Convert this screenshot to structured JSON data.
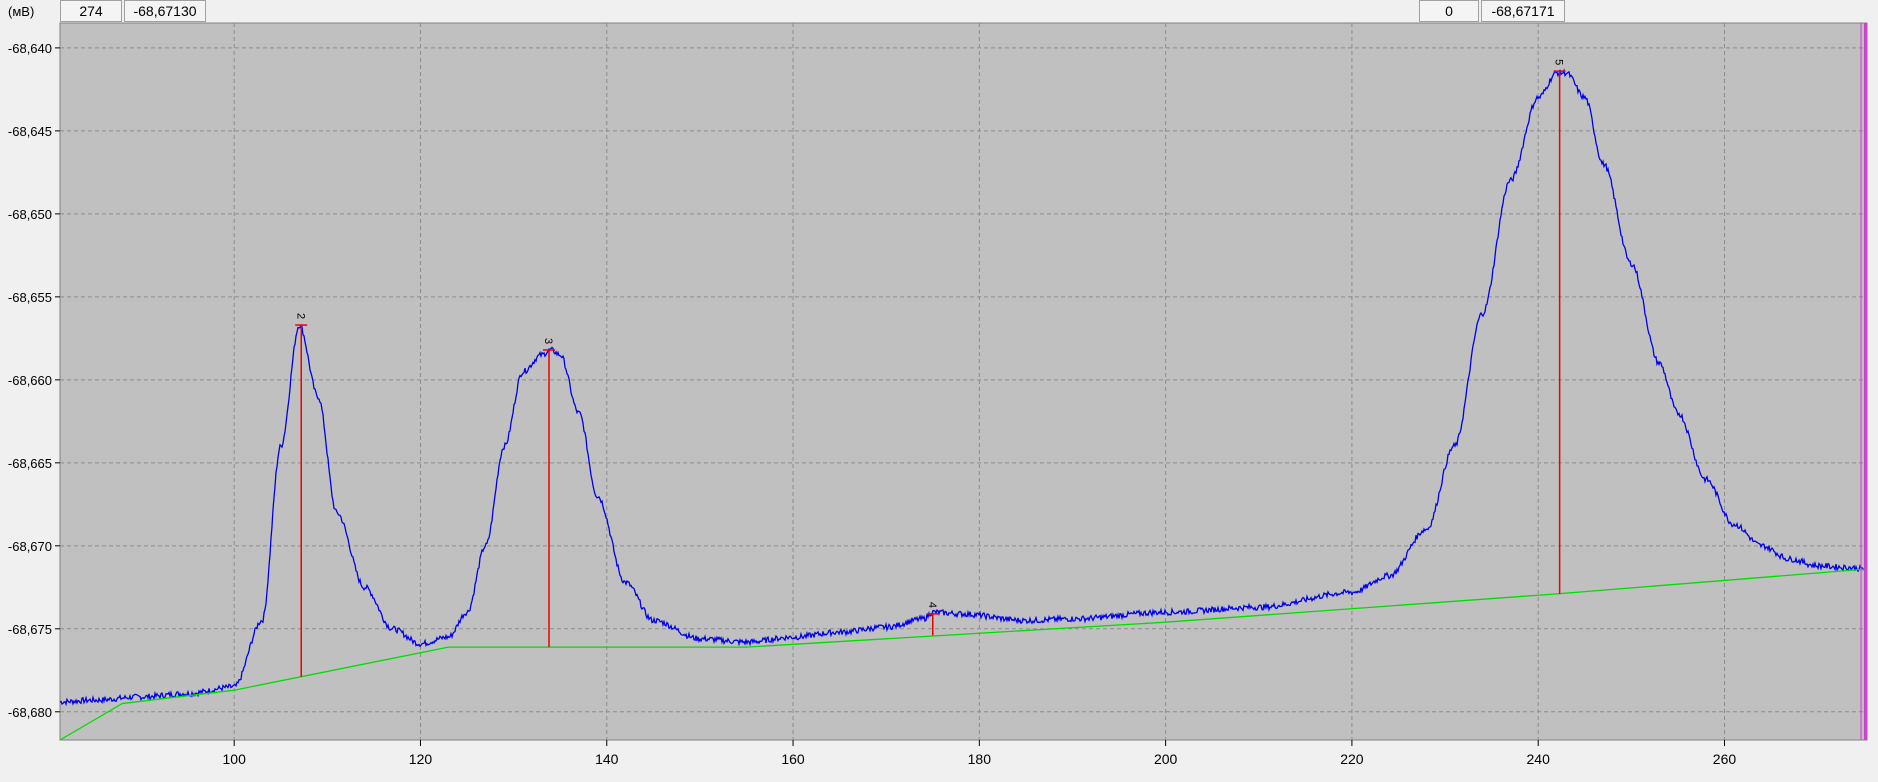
{
  "toolbar": {
    "left_index": "274",
    "left_value": "-68,67130",
    "right_index": "0",
    "right_value": "-68,67171"
  },
  "colors": {
    "plot_bg": "#c0c0c0",
    "grid": "#8c8c8c",
    "signal": "#0000ee",
    "baseline": "#00dd00",
    "peak_marker": "#ee0000",
    "cursor": "#cc44cc"
  },
  "chart_data": {
    "type": "line",
    "title": "",
    "unit_label": "(мВ)",
    "xlabel": "",
    "ylabel": "",
    "xlim": [
      81.3,
      275.3
    ],
    "ylim": [
      -68.6817,
      -68.6385
    ],
    "x_ticks": [
      100,
      120,
      140,
      160,
      180,
      200,
      220,
      240,
      260
    ],
    "y_ticks": [
      -68.64,
      -68.645,
      -68.65,
      -68.655,
      -68.66,
      -68.665,
      -68.67,
      -68.675,
      -68.68
    ],
    "x_tick_labels": [
      "100",
      "120",
      "140",
      "160",
      "180",
      "200",
      "220",
      "240",
      "260"
    ],
    "y_tick_labels": [
      "-68,640",
      "-68,645",
      "-68,650",
      "-68,655",
      "-68,660",
      "-68,665",
      "-68,670",
      "-68,675",
      "-68,680"
    ],
    "grid": true,
    "signal": {
      "x": [
        81.3,
        85,
        90,
        95,
        100,
        103,
        105,
        107,
        109,
        111,
        114,
        117,
        120,
        123,
        125,
        127,
        129,
        131,
        133,
        134,
        135,
        137,
        139,
        142,
        145,
        150,
        155,
        160,
        165,
        170,
        174,
        175,
        178,
        185,
        190,
        200,
        210,
        220,
        224,
        228,
        231,
        234,
        237,
        240,
        242,
        243,
        245,
        247,
        250,
        253,
        255,
        258,
        261,
        264,
        267,
        270,
        273,
        275.3
      ],
      "y": [
        -68.6794,
        -68.6793,
        -68.6791,
        -68.6789,
        -68.6785,
        -68.6745,
        -68.664,
        -68.6567,
        -68.661,
        -68.668,
        -68.6725,
        -68.675,
        -68.6759,
        -68.6755,
        -68.674,
        -68.67,
        -68.664,
        -68.6595,
        -68.6585,
        -68.6582,
        -68.6585,
        -68.662,
        -68.667,
        -68.6722,
        -68.6745,
        -68.6756,
        -68.6758,
        -68.6755,
        -68.6752,
        -68.6749,
        -68.6744,
        -68.674,
        -68.6741,
        -68.6745,
        -68.6744,
        -68.674,
        -68.6737,
        -68.6728,
        -68.6718,
        -68.669,
        -68.664,
        -68.656,
        -68.648,
        -68.643,
        -68.6415,
        -68.6415,
        -68.643,
        -68.647,
        -68.653,
        -68.659,
        -68.662,
        -68.666,
        -68.6687,
        -68.67,
        -68.6708,
        -68.6712,
        -68.6713,
        -68.6714
      ]
    },
    "baseline": {
      "x": [
        81.3,
        88,
        100,
        123,
        155,
        200,
        242,
        275.3
      ],
      "y": [
        -68.6817,
        -68.6795,
        -68.6787,
        -68.6761,
        -68.6761,
        -68.6746,
        -68.6729,
        -68.6714
      ]
    },
    "peaks": [
      {
        "label": "2",
        "x": 107.2,
        "top": -68.6567,
        "base": -68.6779
      },
      {
        "label": "3",
        "x": 133.8,
        "top": -68.6582,
        "base": -68.6761
      },
      {
        "label": "4",
        "x": 175.0,
        "top": -68.6741,
        "base": -68.6754
      },
      {
        "label": "5",
        "x": 242.3,
        "top": -68.6414,
        "base": -68.6729
      }
    ]
  }
}
